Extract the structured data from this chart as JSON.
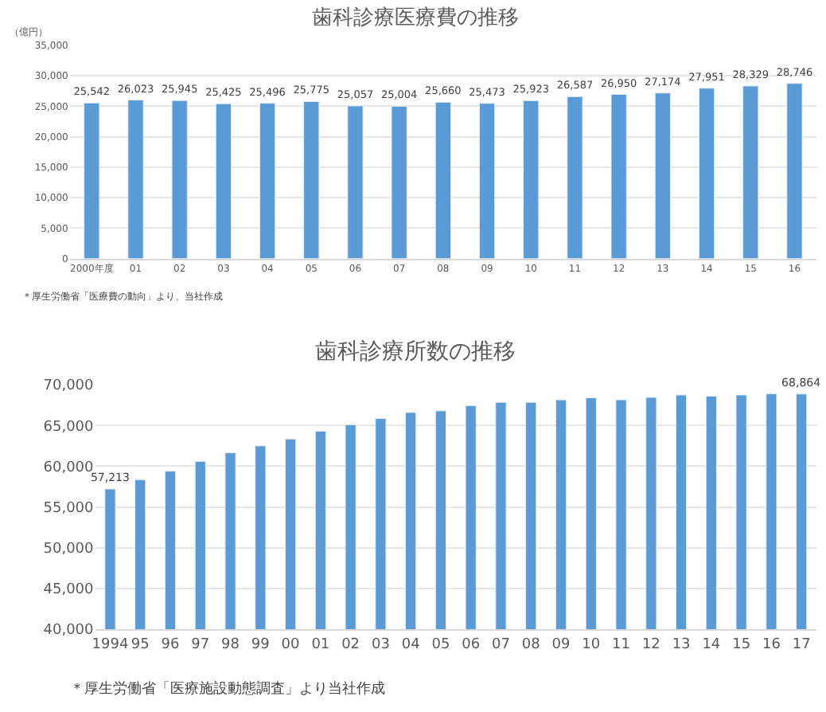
{
  "chart_data": [
    {
      "type": "bar",
      "title": "歯科診療医療費の推移",
      "ylabel": "（億円）",
      "categories": [
        "2000年度",
        "01",
        "02",
        "03",
        "04",
        "05",
        "06",
        "07",
        "08",
        "09",
        "10",
        "11",
        "12",
        "13",
        "14",
        "15",
        "16"
      ],
      "series": [
        {
          "color": "#5b9bd5",
          "values": [
            25542,
            26023,
            25945,
            25425,
            25496,
            25775,
            25057,
            25004,
            25660,
            25473,
            25923,
            26587,
            26950,
            27174,
            27951,
            28329,
            28746
          ],
          "value_labels": [
            "25,542",
            "26,023",
            "25,945",
            "25,425",
            "25,496",
            "25,775",
            "25,057",
            "25,004",
            "25,660",
            "25,473",
            "25,923",
            "26,587",
            "26,950",
            "27,174",
            "27,951",
            "28,329",
            "28,746"
          ]
        }
      ],
      "ylim": [
        0,
        35000
      ],
      "yticks": [
        {
          "value": 0,
          "label": "0"
        },
        {
          "value": 5000,
          "label": "5,000"
        },
        {
          "value": 10000,
          "label": "10,000"
        },
        {
          "value": 15000,
          "label": "15,000"
        },
        {
          "value": 20000,
          "label": "20,000"
        },
        {
          "value": 25000,
          "label": "25,000"
        },
        {
          "value": 30000,
          "label": "30,000"
        },
        {
          "value": 35000,
          "label": "35,000"
        }
      ],
      "grid": "y",
      "annotations": [
        "＊厚生労働省「医療費の動向」より、当社作成"
      ]
    },
    {
      "type": "bar",
      "title": "歯科診療所数の推移",
      "categories": [
        "1994",
        "95",
        "96",
        "97",
        "98",
        "99",
        "00",
        "01",
        "02",
        "03",
        "04",
        "05",
        "06",
        "07",
        "08",
        "09",
        "10",
        "11",
        "12",
        "13",
        "14",
        "15",
        "16",
        "17"
      ],
      "series": [
        {
          "color": "#5b9bd5",
          "values": [
            57213,
            58350,
            59400,
            60600,
            61650,
            62500,
            63350,
            64300,
            65100,
            65850,
            66600,
            66800,
            67450,
            67850,
            67850,
            68150,
            68400,
            68150,
            68450,
            68750,
            68600,
            68750,
            68900,
            68864
          ],
          "value_labels": [
            "57,213",
            null,
            null,
            null,
            null,
            null,
            null,
            null,
            null,
            null,
            null,
            null,
            null,
            null,
            null,
            null,
            null,
            null,
            null,
            null,
            null,
            null,
            null,
            "68,864"
          ]
        }
      ],
      "ylim": [
        40000,
        70000
      ],
      "yticks": [
        {
          "value": 40000,
          "label": "40,000"
        },
        {
          "value": 45000,
          "label": "45,000"
        },
        {
          "value": 50000,
          "label": "50,000"
        },
        {
          "value": 55000,
          "label": "55,000"
        },
        {
          "value": 60000,
          "label": "60,000"
        },
        {
          "value": 65000,
          "label": "65,000"
        },
        {
          "value": 70000,
          "label": "70,000"
        }
      ],
      "grid": "y",
      "annotations": [
        "＊厚生労働省「医療施設動態調査」より当社作成"
      ]
    }
  ]
}
